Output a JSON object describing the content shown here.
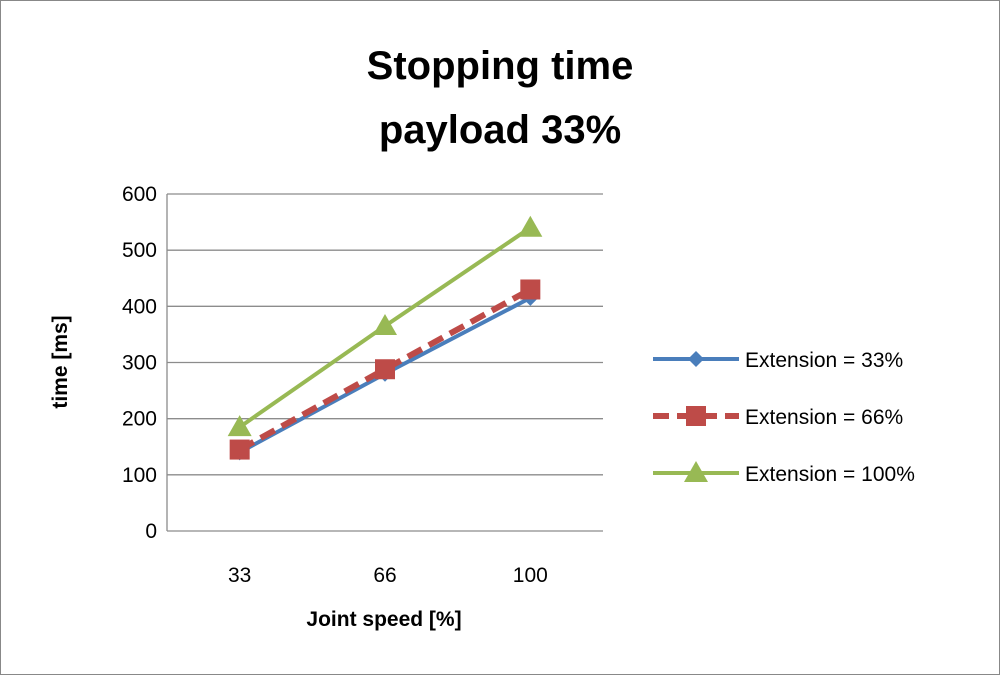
{
  "chart_data": {
    "type": "line",
    "title": "Stopping time",
    "subtitle": "payload 33%",
    "xlabel": "Joint speed [%]",
    "ylabel": "time [ms]",
    "categories": [
      "33",
      "66",
      "100"
    ],
    "ylim": [
      0,
      600
    ],
    "yticks": [
      0,
      100,
      200,
      300,
      400,
      500,
      600
    ],
    "grid": true,
    "legend_position": "right",
    "series": [
      {
        "name": "Extension = 33%",
        "values": [
          140,
          280,
          415
        ],
        "color": "#4a7ebb",
        "marker": "diamond",
        "dash": false
      },
      {
        "name": "Extension = 66%",
        "values": [
          145,
          288,
          430
        ],
        "color": "#be4b48",
        "marker": "square",
        "dash": true
      },
      {
        "name": "Extension = 100%",
        "values": [
          185,
          365,
          540
        ],
        "color": "#98b954",
        "marker": "triangle",
        "dash": false
      }
    ]
  }
}
